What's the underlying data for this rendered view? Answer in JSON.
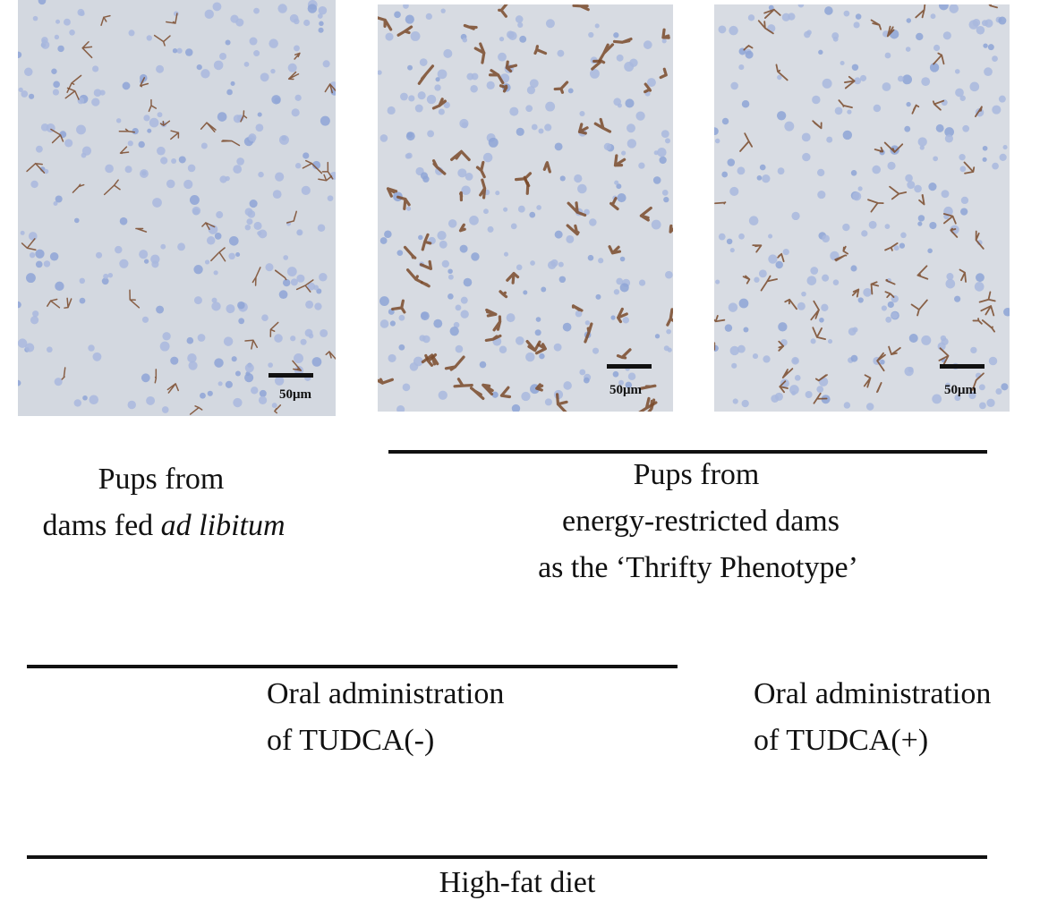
{
  "panels": [
    {
      "scale_bar": "50μm"
    },
    {
      "scale_bar": "50μm"
    },
    {
      "scale_bar": "50μm"
    }
  ],
  "labels": {
    "control": {
      "line1": "Pups from",
      "line2": "dams fed ",
      "line2_italic": "ad libitum"
    },
    "restricted": {
      "line1": "Pups from",
      "line2": "energy-restricted dams",
      "line3": "as the ‘Thrifty Phenotype’"
    },
    "tudca_minus": {
      "line1": "Oral administration",
      "line2": "of TUDCA(-)"
    },
    "tudca_plus": {
      "line1": "Oral administration",
      "line2": "of TUDCA(+)"
    },
    "diet": "High-fat diet"
  }
}
